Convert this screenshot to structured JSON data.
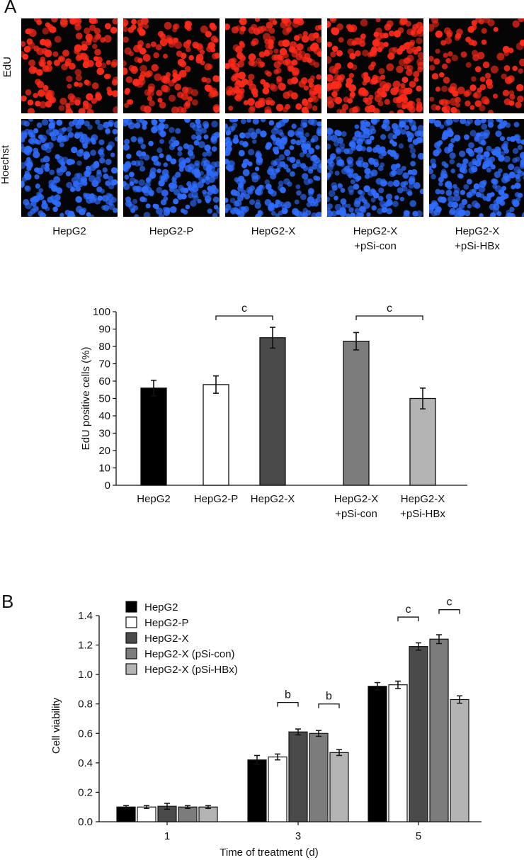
{
  "panel_a": {
    "letter": "A",
    "row_labels": [
      "EdU",
      "Hoechst"
    ],
    "columns": [
      {
        "line1": "HepG2",
        "line2": ""
      },
      {
        "line1": "HepG2-P",
        "line2": ""
      },
      {
        "line1": "HepG2-X",
        "line2": ""
      },
      {
        "line1": "HepG2-X",
        "line2": "+pSi-con"
      },
      {
        "line1": "HepG2-X",
        "line2": "+pSi-HBx"
      }
    ],
    "colors": {
      "edu": "#ff2a1a",
      "hoechst": "#2f6cff",
      "background": "#050505"
    }
  },
  "panel_b": {
    "letter": "B"
  },
  "chart_data": [
    {
      "type": "bar",
      "title": "",
      "xlabel": "",
      "ylabel": "EdU positive cells (%)",
      "ylim": [
        0,
        100
      ],
      "yticks": [
        0,
        10,
        20,
        30,
        40,
        50,
        60,
        70,
        80,
        90,
        100
      ],
      "categories": [
        {
          "line1": "HepG2",
          "line2": ""
        },
        {
          "line1": "HepG2-P",
          "line2": ""
        },
        {
          "line1": "HepG2-X",
          "line2": ""
        },
        {
          "line1": "HepG2-X",
          "line2": "+pSi-con"
        },
        {
          "line1": "HepG2-X",
          "line2": "+pSi-HBx"
        }
      ],
      "values": [
        56,
        58,
        85,
        83,
        50
      ],
      "errors": [
        4.5,
        5,
        6,
        5,
        6
      ],
      "colors": [
        "#000000",
        "#ffffff",
        "#4a4a4a",
        "#7c7c7c",
        "#b4b4b4"
      ],
      "significance": [
        {
          "from": 1,
          "to": 2,
          "label": "c"
        },
        {
          "from": 3,
          "to": 4,
          "label": "c"
        }
      ],
      "grid": false,
      "legend": "none"
    },
    {
      "type": "bar",
      "title": "",
      "xlabel": "Time of treatment (d)",
      "ylabel": "Cell viability",
      "ylim": [
        0,
        1.4
      ],
      "yticks": [
        "0.0",
        "0.2",
        "0.4",
        "0.6",
        "0.8",
        "1.0",
        "1.2",
        "1.4"
      ],
      "categories": [
        "1",
        "3",
        "5"
      ],
      "series": [
        {
          "name": "HepG2",
          "color": "#000000",
          "values": [
            0.1,
            0.42,
            0.92
          ],
          "errors": [
            0.01,
            0.03,
            0.025
          ]
        },
        {
          "name": "HepG2-P",
          "color": "#ffffff",
          "values": [
            0.1,
            0.44,
            0.93
          ],
          "errors": [
            0.01,
            0.02,
            0.025
          ]
        },
        {
          "name": "HepG2-X",
          "color": "#4a4a4a",
          "values": [
            0.105,
            0.61,
            1.19
          ],
          "errors": [
            0.02,
            0.02,
            0.025
          ]
        },
        {
          "name": "HepG2-X (pSi-con)",
          "color": "#7c7c7c",
          "values": [
            0.1,
            0.6,
            1.24
          ],
          "errors": [
            0.01,
            0.02,
            0.03
          ]
        },
        {
          "name": "HepG2-X (pSi-HBx)",
          "color": "#b4b4b4",
          "values": [
            0.1,
            0.47,
            0.83
          ],
          "errors": [
            0.01,
            0.02,
            0.025
          ]
        }
      ],
      "significance": [
        {
          "category": 1,
          "from": 1,
          "to": 2,
          "label": "b"
        },
        {
          "category": 1,
          "from": 3,
          "to": 4,
          "label": "b"
        },
        {
          "category": 2,
          "from": 1,
          "to": 2,
          "label": "c"
        },
        {
          "category": 2,
          "from": 3,
          "to": 4,
          "label": "c"
        }
      ],
      "grid": false,
      "legend": "top-left"
    }
  ]
}
